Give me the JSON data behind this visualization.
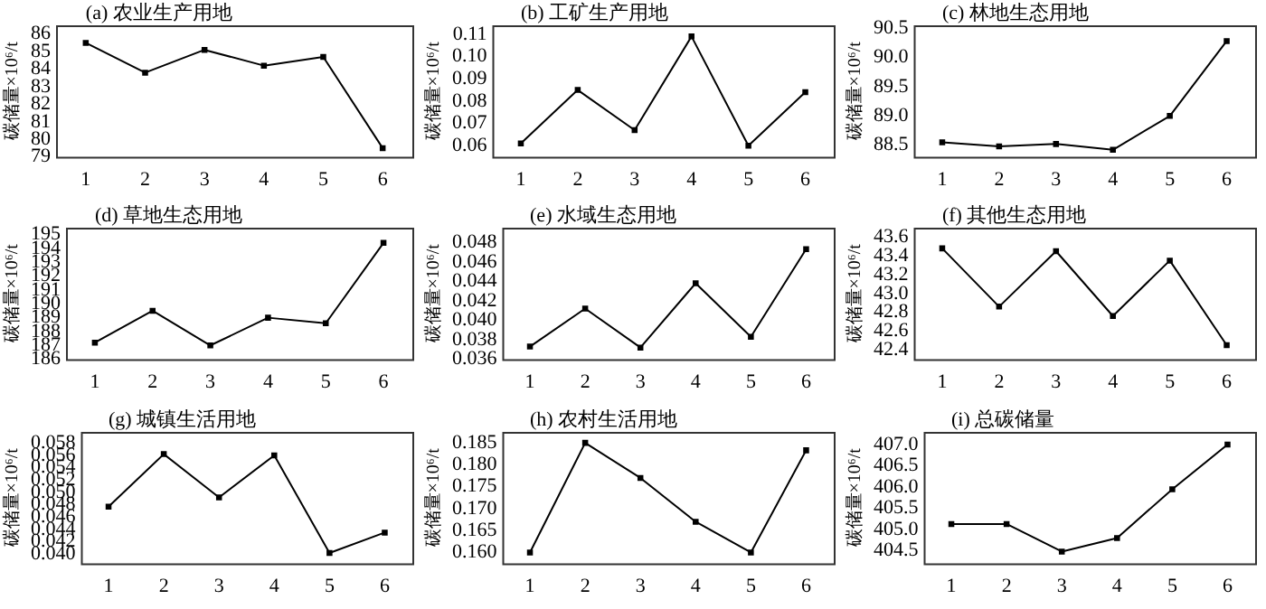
{
  "chart_data": [
    {
      "type": "line",
      "title": "(a) 农业生产用地",
      "ylabel": "碳储量×10⁶/t",
      "categories": [
        "1",
        "2",
        "3",
        "4",
        "5",
        "6"
      ],
      "values": [
        85.5,
        83.8,
        85.1,
        84.2,
        84.7,
        79.5
      ],
      "color": "#000000",
      "ylim": [
        79,
        86.5
      ],
      "yticks": [
        79,
        80,
        81,
        82,
        83,
        84,
        85,
        86
      ],
      "marker": "square",
      "line_style": "solid",
      "grid": false
    },
    {
      "type": "line",
      "title": "(b) 工矿生产用地",
      "ylabel": "碳储量×10⁶/t",
      "categories": [
        "1",
        "2",
        "3",
        "4",
        "5",
        "6"
      ],
      "values": [
        0.061,
        0.085,
        0.067,
        0.109,
        0.06,
        0.084
      ],
      "color": "#000000",
      "ylim": [
        0.055,
        0.114
      ],
      "yticks": [
        {
          "value": 0.06,
          "label": "0.06"
        },
        {
          "value": 0.07,
          "label": "0.07"
        },
        {
          "value": 0.08,
          "label": "0.08"
        },
        {
          "value": 0.09,
          "label": "0.09"
        },
        {
          "value": 0.1,
          "label": "0.10"
        },
        {
          "value": 0.11,
          "label": "0.11"
        }
      ],
      "marker": "square",
      "line_style": "solid",
      "grid": false
    },
    {
      "type": "line",
      "title": "(c) 林地生态用地",
      "ylabel": "碳储量×10⁶/t",
      "categories": [
        "1",
        "2",
        "3",
        "4",
        "5",
        "6"
      ],
      "values": [
        88.55,
        88.48,
        88.52,
        88.42,
        89.0,
        90.28
      ],
      "color": "#000000",
      "ylim": [
        88.3,
        90.55
      ],
      "yticks": [
        88.5,
        {
          "value": 89,
          "label": "89.0"
        },
        89.5,
        {
          "value": 90,
          "label": "90.0"
        },
        90.5
      ],
      "marker": "square",
      "line_style": "solid",
      "grid": false
    },
    {
      "type": "line",
      "title": "(d) 草地生态用地",
      "ylabel": "碳储量×10⁶/t",
      "categories": [
        "1",
        "2",
        "3",
        "4",
        "5",
        "6"
      ],
      "values": [
        187.2,
        189.5,
        187.0,
        189.0,
        188.6,
        194.4
      ],
      "color": "#000000",
      "ylim": [
        186,
        195.5
      ],
      "yticks": [
        186,
        187,
        188,
        189,
        190,
        191,
        192,
        193,
        194,
        195
      ],
      "marker": "square",
      "line_style": "solid",
      "grid": false
    },
    {
      "type": "line",
      "title": "(e) 水域生态用地",
      "ylabel": "碳储量×10⁶/t",
      "categories": [
        "1",
        "2",
        "3",
        "4",
        "5",
        "6"
      ],
      "values": [
        0.0373,
        0.0412,
        0.0372,
        0.0438,
        0.0383,
        0.0473
      ],
      "color": "#000000",
      "ylim": [
        0.036,
        0.0495
      ],
      "yticks": [
        0.036,
        0.038,
        {
          "value": 0.04,
          "label": "0.040"
        },
        0.042,
        0.044,
        0.046,
        0.048
      ],
      "marker": "square",
      "line_style": "solid",
      "grid": false
    },
    {
      "type": "line",
      "title": "(f) 其他生态用地",
      "ylabel": "碳储量×10⁶/t",
      "categories": [
        "1",
        "2",
        "3",
        "4",
        "5",
        "6"
      ],
      "values": [
        43.48,
        42.86,
        43.45,
        42.76,
        43.35,
        42.45
      ],
      "color": "#000000",
      "ylim": [
        42.3,
        43.7
      ],
      "yticks": [
        42.4,
        42.6,
        42.8,
        {
          "value": 43,
          "label": "43.0"
        },
        43.2,
        43.4,
        43.6
      ],
      "marker": "square",
      "line_style": "solid",
      "grid": false
    },
    {
      "type": "line",
      "title": "(g) 城镇生活用地",
      "ylabel": "碳储量×10⁶/t",
      "categories": [
        "1",
        "2",
        "3",
        "4",
        "5",
        "6"
      ],
      "values": [
        0.0477,
        0.0562,
        0.0492,
        0.056,
        0.0402,
        0.0435
      ],
      "color": "#000000",
      "ylim": [
        0.0385,
        0.0598
      ],
      "yticks": [
        {
          "value": 0.04,
          "label": "0.040"
        },
        0.042,
        0.044,
        0.046,
        0.048,
        {
          "value": 0.05,
          "label": "0.050"
        },
        0.052,
        0.054,
        0.056,
        0.058
      ],
      "marker": "square",
      "line_style": "solid",
      "grid": false
    },
    {
      "type": "line",
      "title": "(h) 农村生活用地",
      "ylabel": "碳储量×10⁶/t",
      "categories": [
        "1",
        "2",
        "3",
        "4",
        "5",
        "6"
      ],
      "values": [
        0.16,
        0.185,
        0.177,
        0.167,
        0.16,
        0.1833
      ],
      "color": "#000000",
      "ylim": [
        0.1575,
        0.1875
      ],
      "yticks": [
        {
          "value": 0.16,
          "label": "0.160"
        },
        0.165,
        {
          "value": 0.17,
          "label": "0.170"
        },
        0.175,
        {
          "value": 0.18,
          "label": "0.180"
        },
        0.185
      ],
      "marker": "square",
      "line_style": "solid",
      "grid": false
    },
    {
      "type": "line",
      "title": "(i) 总碳储量",
      "ylabel": "碳储量×10⁶/t",
      "categories": [
        "1",
        "2",
        "3",
        "4",
        "5",
        "6"
      ],
      "values": [
        405.13,
        405.13,
        404.48,
        404.8,
        405.95,
        407.0
      ],
      "color": "#000000",
      "ylim": [
        404.2,
        407.3
      ],
      "yticks": [
        404.5,
        {
          "value": 405,
          "label": "405.0"
        },
        405.5,
        {
          "value": 406,
          "label": "406.0"
        },
        406.5,
        {
          "value": 407,
          "label": "407.0"
        }
      ],
      "marker": "square",
      "line_style": "solid",
      "grid": false
    }
  ]
}
